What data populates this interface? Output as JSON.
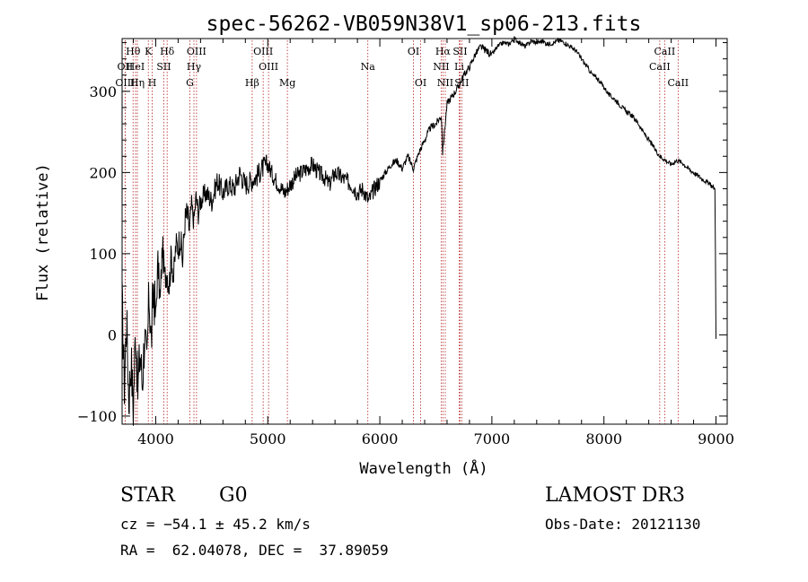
{
  "chart_data": {
    "type": "line",
    "title": "spec-56262-VB059N38V1_sp06-213.fits",
    "xlabel": "Wavelength (Å)",
    "ylabel": "Flux (relative)",
    "xlim": [
      3700,
      9100
    ],
    "ylim": [
      -110,
      365
    ],
    "xticks": [
      4000,
      5000,
      6000,
      7000,
      8000,
      9000
    ],
    "yticks": [
      -100,
      0,
      100,
      200,
      300
    ],
    "x_minor_step": 200,
    "y_minor_step": 20,
    "spectrum": {
      "x": [
        3700,
        3720,
        3740,
        3760,
        3780,
        3800,
        3820,
        3840,
        3860,
        3880,
        3900,
        3920,
        3940,
        3960,
        3980,
        4000,
        4020,
        4040,
        4060,
        4080,
        4100,
        4120,
        4140,
        4160,
        4180,
        4200,
        4220,
        4240,
        4260,
        4280,
        4300,
        4320,
        4340,
        4360,
        4380,
        4400,
        4450,
        4500,
        4550,
        4600,
        4650,
        4700,
        4750,
        4800,
        4850,
        4900,
        4950,
        5000,
        5050,
        5100,
        5150,
        5200,
        5250,
        5300,
        5350,
        5400,
        5450,
        5500,
        5550,
        5600,
        5650,
        5700,
        5750,
        5800,
        5850,
        5900,
        5950,
        6000,
        6050,
        6100,
        6150,
        6200,
        6250,
        6300,
        6350,
        6400,
        6450,
        6500,
        6550,
        6560,
        6600,
        6650,
        6700,
        6750,
        6800,
        6850,
        6900,
        6950,
        7000,
        7050,
        7100,
        7150,
        7200,
        7250,
        7300,
        7350,
        7400,
        7450,
        7500,
        7550,
        7600,
        7650,
        7700,
        7750,
        7800,
        7850,
        7900,
        7950,
        8000,
        8050,
        8100,
        8150,
        8200,
        8250,
        8300,
        8350,
        8400,
        8450,
        8500,
        8550,
        8600,
        8650,
        8700,
        8750,
        8800,
        8850,
        8900,
        8950,
        8990,
        8995,
        9000
      ],
      "y": [
        40,
        -60,
        20,
        -80,
        -30,
        -90,
        10,
        -70,
        -20,
        -60,
        0,
        -40,
        50,
        -10,
        60,
        20,
        90,
        40,
        110,
        70,
        80,
        60,
        100,
        70,
        110,
        110,
        120,
        90,
        140,
        150,
        130,
        160,
        140,
        170,
        150,
        165,
        175,
        165,
        190,
        175,
        185,
        180,
        200,
        185,
        190,
        195,
        205,
        210,
        195,
        185,
        175,
        185,
        195,
        200,
        205,
        210,
        200,
        195,
        185,
        200,
        195,
        190,
        185,
        175,
        180,
        165,
        180,
        190,
        200,
        210,
        215,
        205,
        220,
        205,
        225,
        240,
        255,
        260,
        270,
        225,
        285,
        295,
        305,
        320,
        330,
        345,
        355,
        350,
        345,
        355,
        360,
        358,
        365,
        360,
        355,
        362,
        360,
        362,
        358,
        360,
        363,
        360,
        355,
        350,
        340,
        330,
        320,
        315,
        305,
        295,
        290,
        282,
        275,
        270,
        262,
        250,
        240,
        230,
        220,
        215,
        210,
        215,
        212,
        205,
        200,
        195,
        190,
        185,
        180,
        100,
        -5
      ]
    },
    "lines": [
      {
        "label": "Hθ",
        "x": 3798,
        "row": 1
      },
      {
        "label": "OII",
        "x": 3727,
        "row": 2
      },
      {
        "label": "OIII",
        "x": 3727,
        "row": 3
      },
      {
        "label": "HeI",
        "x": 3820,
        "row": 2
      },
      {
        "label": "Hη",
        "x": 3836,
        "row": 3
      },
      {
        "label": "K",
        "x": 3934,
        "row": 1
      },
      {
        "label": "H",
        "x": 3969,
        "row": 3
      },
      {
        "label": "SII",
        "x": 4072,
        "row": 2
      },
      {
        "label": "Hδ",
        "x": 4102,
        "row": 1
      },
      {
        "label": "OIII",
        "x": 4364,
        "row": 1
      },
      {
        "label": "Hγ",
        "x": 4341,
        "row": 2
      },
      {
        "label": "G",
        "x": 4305,
        "row": 3
      },
      {
        "label": "Hβ",
        "x": 4861,
        "row": 3
      },
      {
        "label": "OIII",
        "x": 4959,
        "row": 1
      },
      {
        "label": "OIII",
        "x": 5007,
        "row": 2
      },
      {
        "label": "Mg",
        "x": 5175,
        "row": 3
      },
      {
        "label": "Na",
        "x": 5893,
        "row": 2
      },
      {
        "label": "OI",
        "x": 6300,
        "row": 1
      },
      {
        "label": "OI",
        "x": 6364,
        "row": 3
      },
      {
        "label": "Hα",
        "x": 6563,
        "row": 1
      },
      {
        "label": "NII",
        "x": 6548,
        "row": 2
      },
      {
        "label": "NII",
        "x": 6584,
        "row": 3
      },
      {
        "label": "SII",
        "x": 6716,
        "row": 1
      },
      {
        "label": "Li",
        "x": 6708,
        "row": 2
      },
      {
        "label": "SII",
        "x": 6731,
        "row": 3
      },
      {
        "label": "CaII",
        "x": 8542,
        "row": 1
      },
      {
        "label": "CaII",
        "x": 8498,
        "row": 2
      },
      {
        "label": "CaII",
        "x": 8662,
        "row": 3
      }
    ],
    "colors": {
      "spectrum": "#000000",
      "lines": "#b22222",
      "axes": "#000000"
    }
  },
  "info": {
    "class_label": "STAR",
    "subclass": "G0",
    "survey": "LAMOST DR3",
    "cz": "cz = −54.1 ± 45.2 km/s",
    "obs_date": "Obs-Date: 20121130",
    "radec": "RA =  62.04078, DEC =  37.89059"
  }
}
